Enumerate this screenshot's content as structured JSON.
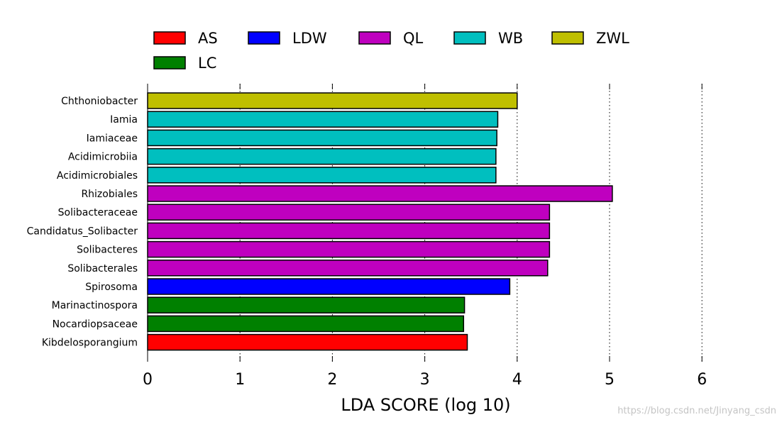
{
  "chart_data": {
    "type": "bar",
    "orientation": "horizontal",
    "title": "",
    "xlabel": "LDA SCORE (log 10)",
    "ylabel": "",
    "xlim": [
      0,
      6
    ],
    "xticks": [
      "0",
      "1",
      "2",
      "3",
      "4",
      "5",
      "6"
    ],
    "grid": "vertical dotted",
    "legend_position": "top",
    "legend": [
      {
        "name": "AS",
        "color": "#ff0000"
      },
      {
        "name": "LDW",
        "color": "#0000ff"
      },
      {
        "name": "QL",
        "color": "#bf00bf"
      },
      {
        "name": "WB",
        "color": "#00bfbf"
      },
      {
        "name": "ZWL",
        "color": "#bfbf00"
      },
      {
        "name": "LC",
        "color": "#008000"
      }
    ],
    "bars": [
      {
        "label": "Chthoniobacter",
        "value": 4.0,
        "group": "ZWL"
      },
      {
        "label": "Iamia",
        "value": 3.79,
        "group": "WB"
      },
      {
        "label": "Iamiaceae",
        "value": 3.78,
        "group": "WB"
      },
      {
        "label": "Acidimicrobiia",
        "value": 3.77,
        "group": "WB"
      },
      {
        "label": "Acidimicrobiales",
        "value": 3.77,
        "group": "WB"
      },
      {
        "label": "Rhizobiales",
        "value": 5.03,
        "group": "QL"
      },
      {
        "label": "Solibacteraceae",
        "value": 4.35,
        "group": "QL"
      },
      {
        "label": "Candidatus_Solibacter",
        "value": 4.35,
        "group": "QL"
      },
      {
        "label": "Solibacteres",
        "value": 4.35,
        "group": "QL"
      },
      {
        "label": "Solibacterales",
        "value": 4.33,
        "group": "QL"
      },
      {
        "label": "Spirosoma",
        "value": 3.92,
        "group": "LDW"
      },
      {
        "label": "Marinactinospora",
        "value": 3.43,
        "group": "LC"
      },
      {
        "label": "Nocardiopsaceae",
        "value": 3.42,
        "group": "LC"
      },
      {
        "label": "Kibdelosporangium",
        "value": 3.46,
        "group": "AS"
      }
    ]
  },
  "watermark": "https://blog.csdn.net/Jinyang_csdn"
}
